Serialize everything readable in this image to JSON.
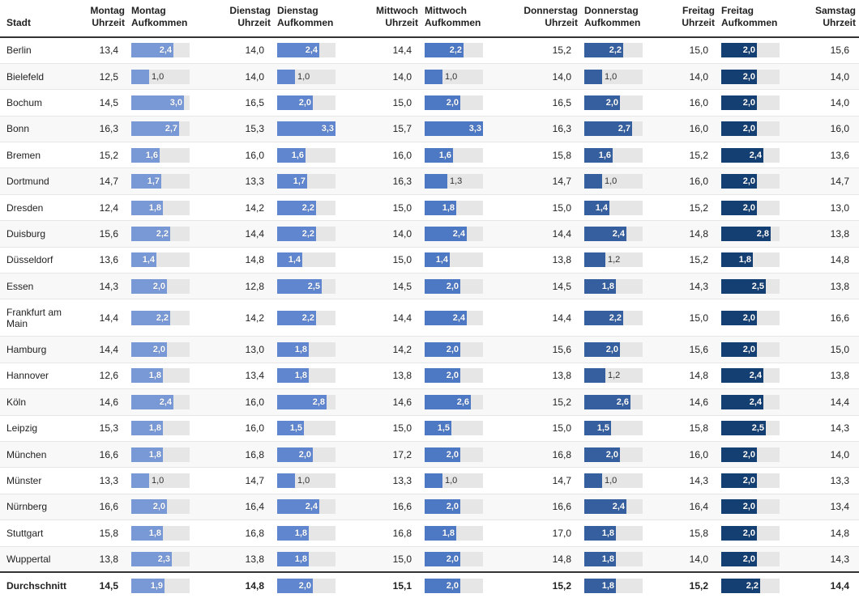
{
  "chart_data": {
    "type": "table",
    "headers": [
      {
        "l1": "Stadt",
        "l2": "",
        "align": "l"
      },
      {
        "l1": "Montag",
        "l2": "Uhrzeit",
        "align": "r"
      },
      {
        "l1": "Montag",
        "l2": "Aufkommen",
        "align": "l"
      },
      {
        "l1": "Dienstag",
        "l2": "Uhrzeit",
        "align": "r"
      },
      {
        "l1": "Dienstag",
        "l2": "Aufkommen",
        "align": "l"
      },
      {
        "l1": "Mittwoch",
        "l2": "Uhrzeit",
        "align": "r"
      },
      {
        "l1": "Mittwoch",
        "l2": "Aufkommen",
        "align": "l"
      },
      {
        "l1": "Donnerstag",
        "l2": "Uhrzeit",
        "align": "r"
      },
      {
        "l1": "Donnerstag",
        "l2": "Aufkommen",
        "align": "l"
      },
      {
        "l1": "Freitag",
        "l2": "Uhrzeit",
        "align": "r"
      },
      {
        "l1": "Freitag",
        "l2": "Aufkommen",
        "align": "l"
      },
      {
        "l1": "Samstag",
        "l2": "Uhrzeit",
        "align": "r"
      }
    ],
    "bar_colors": [
      "#7898d6",
      "#5f86cf",
      "#4d78c4",
      "#355f9f",
      "#143f73"
    ],
    "bar_max": 3.3,
    "rows": [
      {
        "city": "Berlin",
        "mo_t": "13,4",
        "mo_a": "2,4",
        "di_t": "14,0",
        "di_a": "2,4",
        "mi_t": "14,4",
        "mi_a": "2,2",
        "do_t": "15,2",
        "do_a": "2,2",
        "fr_t": "15,0",
        "fr_a": "2,0",
        "sa_t": "15,6"
      },
      {
        "city": "Bielefeld",
        "mo_t": "12,5",
        "mo_a": "1,0",
        "di_t": "14,0",
        "di_a": "1,0",
        "mi_t": "14,0",
        "mi_a": "1,0",
        "do_t": "14,0",
        "do_a": "1,0",
        "fr_t": "14,0",
        "fr_a": "2,0",
        "sa_t": "14,0"
      },
      {
        "city": "Bochum",
        "mo_t": "14,5",
        "mo_a": "3,0",
        "di_t": "16,5",
        "di_a": "2,0",
        "mi_t": "15,0",
        "mi_a": "2,0",
        "do_t": "16,5",
        "do_a": "2,0",
        "fr_t": "16,0",
        "fr_a": "2,0",
        "sa_t": "14,0"
      },
      {
        "city": "Bonn",
        "mo_t": "16,3",
        "mo_a": "2,7",
        "di_t": "15,3",
        "di_a": "3,3",
        "mi_t": "15,7",
        "mi_a": "3,3",
        "do_t": "16,3",
        "do_a": "2,7",
        "fr_t": "16,0",
        "fr_a": "2,0",
        "sa_t": "16,0"
      },
      {
        "city": "Bremen",
        "mo_t": "15,2",
        "mo_a": "1,6",
        "di_t": "16,0",
        "di_a": "1,6",
        "mi_t": "16,0",
        "mi_a": "1,6",
        "do_t": "15,8",
        "do_a": "1,6",
        "fr_t": "15,2",
        "fr_a": "2,4",
        "sa_t": "13,6"
      },
      {
        "city": "Dortmund",
        "mo_t": "14,7",
        "mo_a": "1,7",
        "di_t": "13,3",
        "di_a": "1,7",
        "mi_t": "16,3",
        "mi_a": "1,3",
        "do_t": "14,7",
        "do_a": "1,0",
        "fr_t": "16,0",
        "fr_a": "2,0",
        "sa_t": "14,7"
      },
      {
        "city": "Dresden",
        "mo_t": "12,4",
        "mo_a": "1,8",
        "di_t": "14,2",
        "di_a": "2,2",
        "mi_t": "15,0",
        "mi_a": "1,8",
        "do_t": "15,0",
        "do_a": "1,4",
        "fr_t": "15,2",
        "fr_a": "2,0",
        "sa_t": "13,0"
      },
      {
        "city": "Duisburg",
        "mo_t": "15,6",
        "mo_a": "2,2",
        "di_t": "14,4",
        "di_a": "2,2",
        "mi_t": "14,0",
        "mi_a": "2,4",
        "do_t": "14,4",
        "do_a": "2,4",
        "fr_t": "14,8",
        "fr_a": "2,8",
        "sa_t": "13,8"
      },
      {
        "city": "Düsseldorf",
        "mo_t": "13,6",
        "mo_a": "1,4",
        "di_t": "14,8",
        "di_a": "1,4",
        "mi_t": "15,0",
        "mi_a": "1,4",
        "do_t": "13,8",
        "do_a": "1,2",
        "fr_t": "15,2",
        "fr_a": "1,8",
        "sa_t": "14,8"
      },
      {
        "city": "Essen",
        "mo_t": "14,3",
        "mo_a": "2,0",
        "di_t": "12,8",
        "di_a": "2,5",
        "mi_t": "14,5",
        "mi_a": "2,0",
        "do_t": "14,5",
        "do_a": "1,8",
        "fr_t": "14,3",
        "fr_a": "2,5",
        "sa_t": "13,8"
      },
      {
        "city": "Frankfurt am Main",
        "mo_t": "14,4",
        "mo_a": "2,2",
        "di_t": "14,2",
        "di_a": "2,2",
        "mi_t": "14,4",
        "mi_a": "2,4",
        "do_t": "14,4",
        "do_a": "2,2",
        "fr_t": "15,0",
        "fr_a": "2,0",
        "sa_t": "16,6"
      },
      {
        "city": "Hamburg",
        "mo_t": "14,4",
        "mo_a": "2,0",
        "di_t": "13,0",
        "di_a": "1,8",
        "mi_t": "14,2",
        "mi_a": "2,0",
        "do_t": "15,6",
        "do_a": "2,0",
        "fr_t": "15,6",
        "fr_a": "2,0",
        "sa_t": "15,0"
      },
      {
        "city": "Hannover",
        "mo_t": "12,6",
        "mo_a": "1,8",
        "di_t": "13,4",
        "di_a": "1,8",
        "mi_t": "13,8",
        "mi_a": "2,0",
        "do_t": "13,8",
        "do_a": "1,2",
        "fr_t": "14,8",
        "fr_a": "2,4",
        "sa_t": "13,8"
      },
      {
        "city": "Köln",
        "mo_t": "14,6",
        "mo_a": "2,4",
        "di_t": "16,0",
        "di_a": "2,8",
        "mi_t": "14,6",
        "mi_a": "2,6",
        "do_t": "15,2",
        "do_a": "2,6",
        "fr_t": "14,6",
        "fr_a": "2,4",
        "sa_t": "14,4"
      },
      {
        "city": "Leipzig",
        "mo_t": "15,3",
        "mo_a": "1,8",
        "di_t": "16,0",
        "di_a": "1,5",
        "mi_t": "15,0",
        "mi_a": "1,5",
        "do_t": "15,0",
        "do_a": "1,5",
        "fr_t": "15,8",
        "fr_a": "2,5",
        "sa_t": "14,3"
      },
      {
        "city": "München",
        "mo_t": "16,6",
        "mo_a": "1,8",
        "di_t": "16,8",
        "di_a": "2,0",
        "mi_t": "17,2",
        "mi_a": "2,0",
        "do_t": "16,8",
        "do_a": "2,0",
        "fr_t": "16,0",
        "fr_a": "2,0",
        "sa_t": "14,0"
      },
      {
        "city": "Münster",
        "mo_t": "13,3",
        "mo_a": "1,0",
        "di_t": "14,7",
        "di_a": "1,0",
        "mi_t": "13,3",
        "mi_a": "1,0",
        "do_t": "14,7",
        "do_a": "1,0",
        "fr_t": "14,3",
        "fr_a": "2,0",
        "sa_t": "13,3"
      },
      {
        "city": "Nürnberg",
        "mo_t": "16,6",
        "mo_a": "2,0",
        "di_t": "16,4",
        "di_a": "2,4",
        "mi_t": "16,6",
        "mi_a": "2,0",
        "do_t": "16,6",
        "do_a": "2,4",
        "fr_t": "16,4",
        "fr_a": "2,0",
        "sa_t": "13,4"
      },
      {
        "city": "Stuttgart",
        "mo_t": "15,8",
        "mo_a": "1,8",
        "di_t": "16,8",
        "di_a": "1,8",
        "mi_t": "16,8",
        "mi_a": "1,8",
        "do_t": "17,0",
        "do_a": "1,8",
        "fr_t": "15,8",
        "fr_a": "2,0",
        "sa_t": "14,8"
      },
      {
        "city": "Wuppertal",
        "mo_t": "13,8",
        "mo_a": "2,3",
        "di_t": "13,8",
        "di_a": "1,8",
        "mi_t": "15,0",
        "mi_a": "2,0",
        "do_t": "14,8",
        "do_a": "1,8",
        "fr_t": "14,0",
        "fr_a": "2,0",
        "sa_t": "14,3"
      }
    ],
    "footer": {
      "city": "Durchschnitt",
      "mo_t": "14,5",
      "mo_a": "1,9",
      "di_t": "14,8",
      "di_a": "2,0",
      "mi_t": "15,1",
      "mi_a": "2,0",
      "do_t": "15,2",
      "do_a": "1,8",
      "fr_t": "15,2",
      "fr_a": "2,2",
      "sa_t": "14,4"
    }
  }
}
